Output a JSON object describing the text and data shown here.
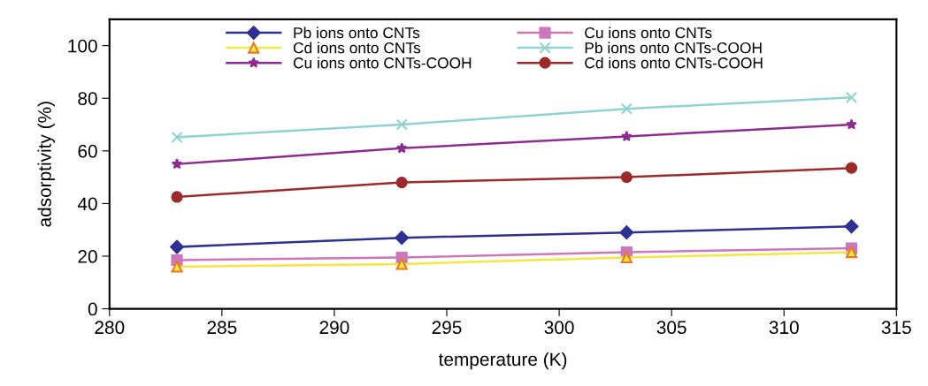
{
  "chart_data": {
    "type": "line",
    "xlabel": "temperature (K)",
    "ylabel": "adsorptivity (%)",
    "x": [
      283,
      293,
      303,
      313
    ],
    "xlim": [
      280,
      315
    ],
    "xticks": [
      280,
      285,
      290,
      295,
      300,
      305,
      310,
      315
    ],
    "ylim": [
      0,
      110
    ],
    "yticks": [
      0,
      20,
      40,
      60,
      80,
      100
    ],
    "grid": false,
    "legend": "top",
    "line_style": "solid",
    "series": [
      {
        "name": "Pb ions onto CNTs",
        "color": "#2e3192",
        "marker": "diamond",
        "values": [
          23.5,
          27,
          29,
          31.3
        ]
      },
      {
        "name": "Cu ions onto CNTs",
        "color": "#cc77bb",
        "marker": "square",
        "values": [
          18.5,
          19.5,
          21.5,
          23
        ]
      },
      {
        "name": "Cd ions onto CNTs",
        "color": "#f5e642",
        "marker": "triangle",
        "values": [
          16,
          17,
          19.5,
          21.5
        ]
      },
      {
        "name": "Pb ions onto CNTs-COOH",
        "color": "#8fd3d3",
        "marker": "cross",
        "values": [
          65.2,
          70,
          76,
          80.3
        ]
      },
      {
        "name": "Cu ions onto CNTs-COOH",
        "color": "#8e2c91",
        "marker": "star",
        "values": [
          55,
          61,
          65.5,
          70
        ]
      },
      {
        "name": "Cd ions onto CNTs-COOH",
        "color": "#9b2a2a",
        "marker": "circle",
        "values": [
          42.5,
          48,
          50,
          53.5
        ]
      }
    ]
  }
}
